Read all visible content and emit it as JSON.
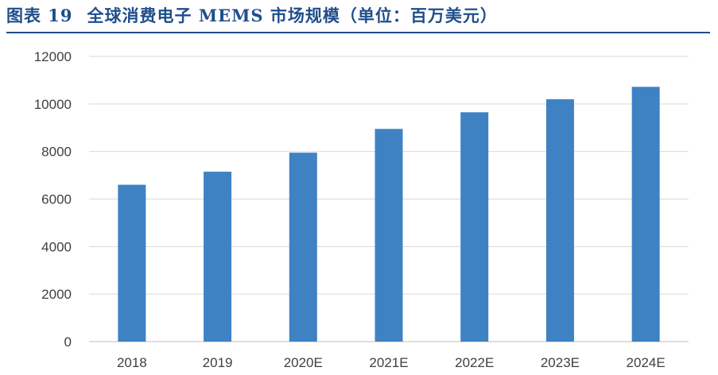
{
  "figure": {
    "number_label": "图表 19",
    "title": "全球消费电子 MEMS 市场规模（单位：百万美元）"
  },
  "colors": {
    "bar": "#3f82c4",
    "title": "#1f4e8c",
    "grid": "#d9d9d9",
    "axis": "#bfbfbf"
  },
  "chart_data": {
    "type": "bar",
    "categories": [
      "2018",
      "2019",
      "2020E",
      "2021E",
      "2022E",
      "2023E",
      "2024E"
    ],
    "values": [
      6600,
      7150,
      7950,
      8950,
      9650,
      10200,
      10720
    ],
    "ylim": [
      0,
      12000
    ],
    "yticks": [
      0,
      2000,
      4000,
      6000,
      8000,
      10000,
      12000
    ],
    "grid": true,
    "legend": "none"
  }
}
